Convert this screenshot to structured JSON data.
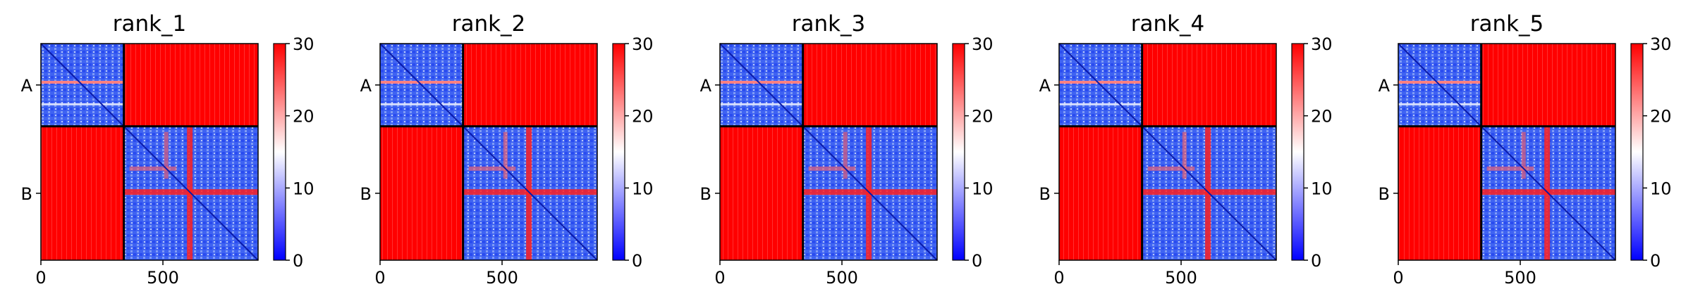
{
  "chart_data": [
    {
      "type": "heatmap",
      "title": "rank_1",
      "ylabels": [
        "A",
        "B"
      ],
      "xticks": [
        0,
        500
      ],
      "xlim": [
        0,
        890
      ],
      "chain_break": 340,
      "colorbar": {
        "ticks": [
          0,
          10,
          20,
          30
        ],
        "range": [
          0,
          30
        ],
        "colors": [
          "#0000ff",
          "#ffffff",
          "#ff0000"
        ]
      }
    },
    {
      "type": "heatmap",
      "title": "rank_2",
      "ylabels": [
        "A",
        "B"
      ],
      "xticks": [
        0,
        500
      ],
      "xlim": [
        0,
        890
      ],
      "chain_break": 340,
      "colorbar": {
        "ticks": [
          0,
          10,
          20,
          30
        ],
        "range": [
          0,
          30
        ],
        "colors": [
          "#0000ff",
          "#ffffff",
          "#ff0000"
        ]
      }
    },
    {
      "type": "heatmap",
      "title": "rank_3",
      "ylabels": [
        "A",
        "B"
      ],
      "xticks": [
        0,
        500
      ],
      "xlim": [
        0,
        890
      ],
      "chain_break": 340,
      "colorbar": {
        "ticks": [
          0,
          10,
          20,
          30
        ],
        "range": [
          0,
          30
        ],
        "colors": [
          "#0000ff",
          "#ffffff",
          "#ff0000"
        ]
      }
    },
    {
      "type": "heatmap",
      "title": "rank_4",
      "ylabels": [
        "A",
        "B"
      ],
      "xticks": [
        0,
        500
      ],
      "xlim": [
        0,
        890
      ],
      "chain_break": 340,
      "colorbar": {
        "ticks": [
          0,
          10,
          20,
          30
        ],
        "range": [
          0,
          30
        ],
        "colors": [
          "#0000ff",
          "#ffffff",
          "#ff0000"
        ]
      }
    },
    {
      "type": "heatmap",
      "title": "rank_5",
      "ylabels": [
        "A",
        "B"
      ],
      "xticks": [
        0,
        500
      ],
      "xlim": [
        0,
        890
      ],
      "chain_break": 340,
      "colorbar": {
        "ticks": [
          0,
          10,
          20,
          30
        ],
        "range": [
          0,
          30
        ],
        "colors": [
          "#0000ff",
          "#ffffff",
          "#ff0000"
        ]
      }
    }
  ]
}
